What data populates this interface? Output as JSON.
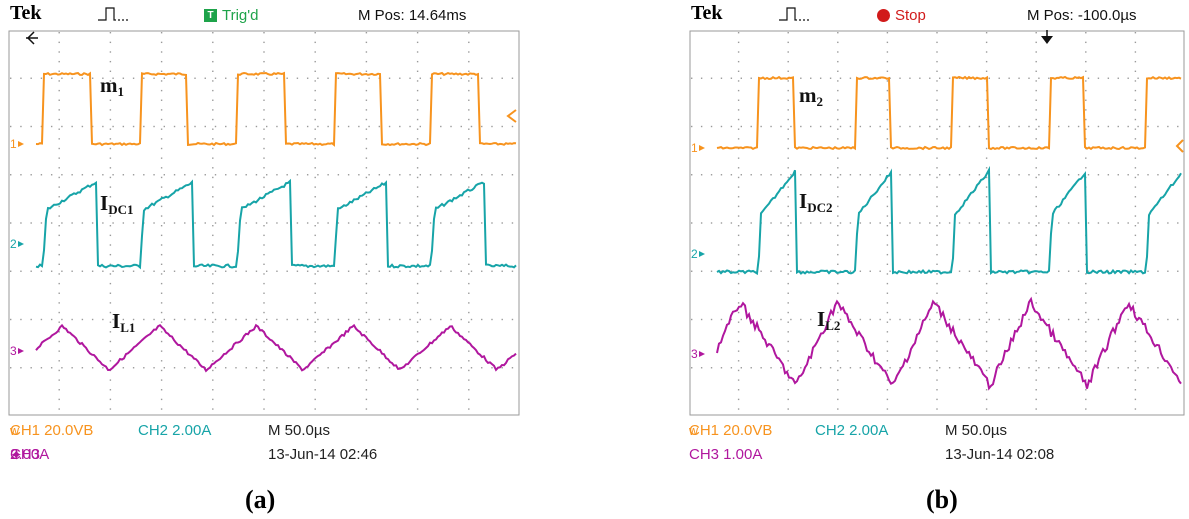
{
  "scope_a": {
    "brand": "Tek",
    "trigger_status": "Trig'd",
    "trigger_badge": "T",
    "m_pos": "M Pos: 14.64ms",
    "channel_markers": [
      "1",
      "2",
      "3"
    ],
    "ch1": "CH1  20.0VB",
    "ch1_suffix": "w",
    "ch2": "CH2  2.00A",
    "ch3": "CH3",
    "ch3_scale": "2.00A",
    "timebase": "M 50.0µs",
    "datetime": "13-Jun-14 02:46",
    "traces": [
      {
        "main": "m",
        "sub": "1",
        "color": "#f7931e"
      },
      {
        "main": "I",
        "sub": "DC1",
        "color": "#17a4a8"
      },
      {
        "main": "I",
        "sub": "L1",
        "color": "#b0179e"
      }
    ],
    "caption": "(a)"
  },
  "scope_b": {
    "brand": "Tek",
    "trigger_status": "Stop",
    "m_pos": "M Pos: -100.0µs",
    "channel_markers": [
      "1",
      "2",
      "3"
    ],
    "ch1": "CH1  20.0VB",
    "ch1_suffix": "w",
    "ch2": "CH2  2.00A",
    "ch3": "CH3  1.00A",
    "timebase": "M 50.0µs",
    "datetime": "13-Jun-14 02:08",
    "traces": [
      {
        "main": "m",
        "sub": "2",
        "color": "#f7931e"
      },
      {
        "main": "I",
        "sub": "DC2",
        "color": "#17a4a8"
      },
      {
        "main": "I",
        "sub": "L2",
        "color": "#b0179e"
      }
    ],
    "caption": "(b)"
  }
}
